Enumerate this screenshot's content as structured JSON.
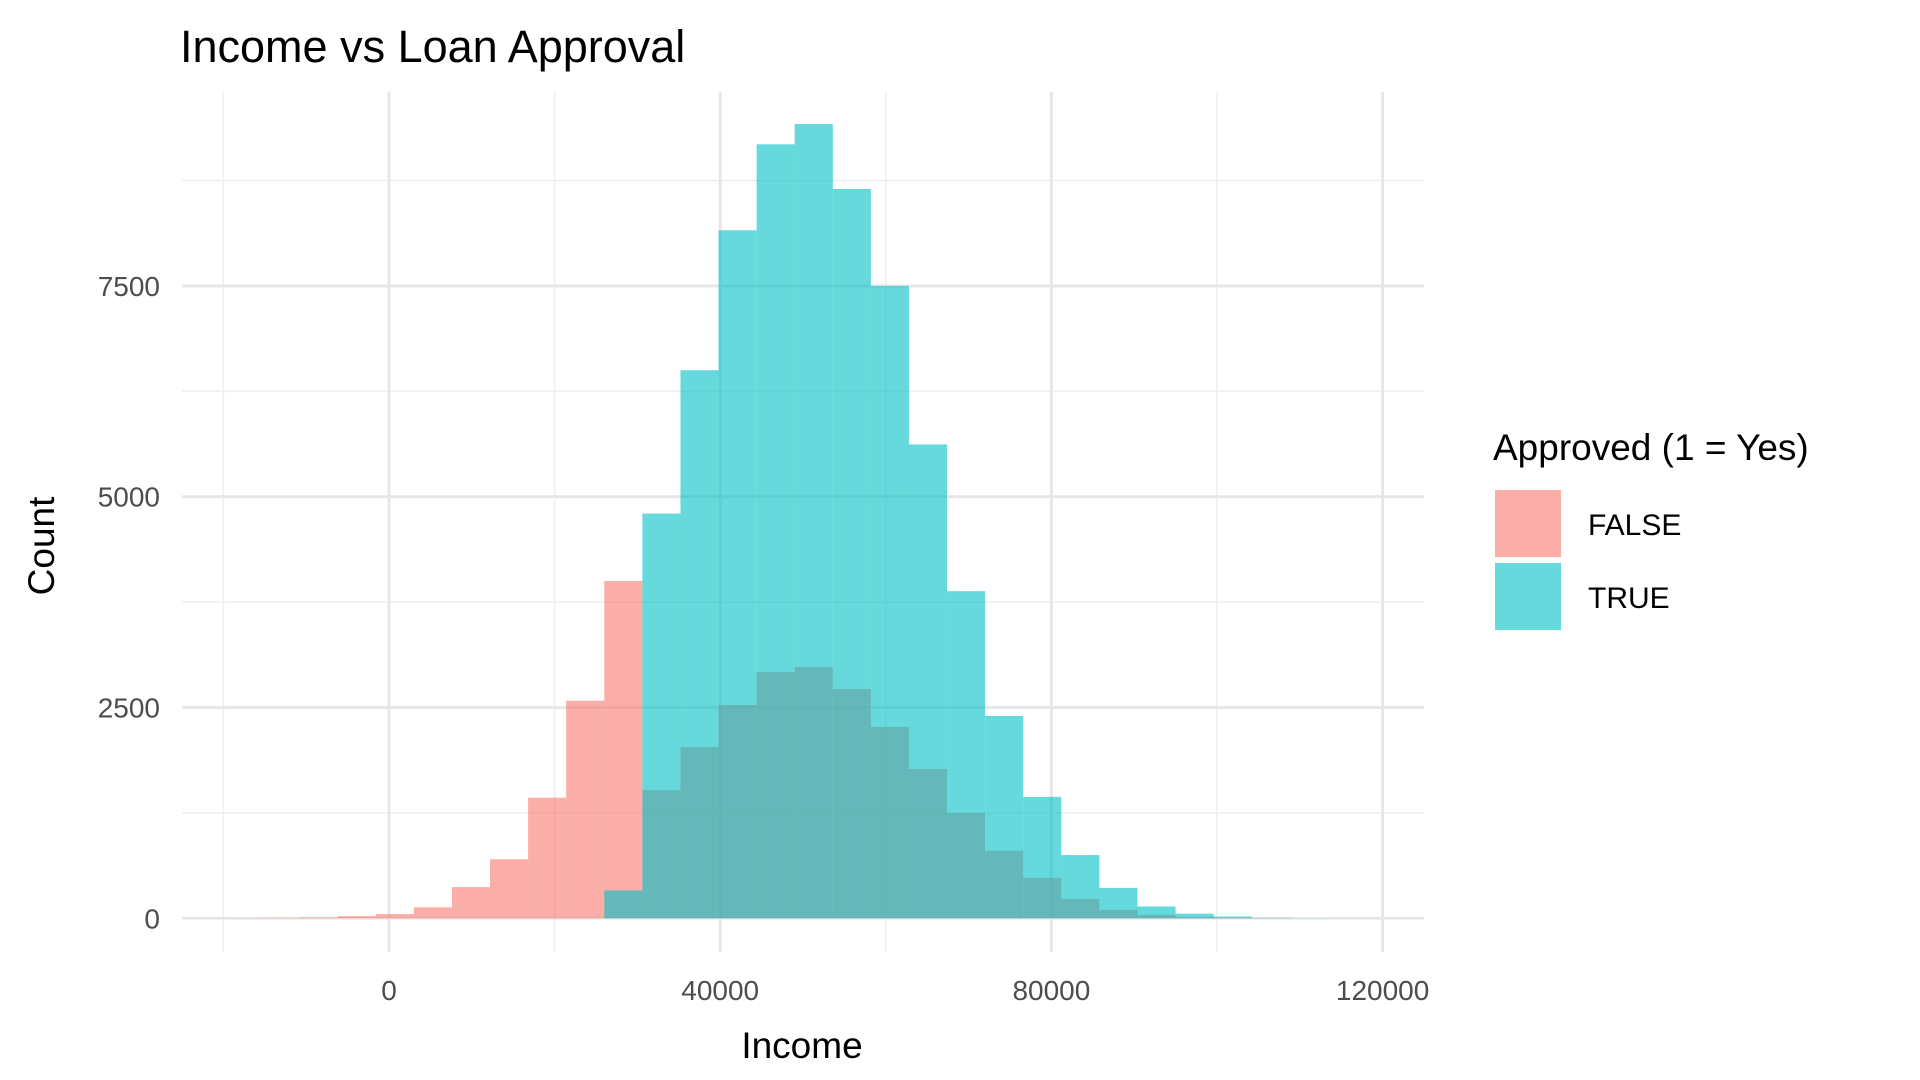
{
  "chart_data": {
    "type": "bar",
    "subtype": "overlapping-histogram",
    "title": "Income vs Loan Approval",
    "xlabel": "Income",
    "ylabel": "Count",
    "xlim": [
      -25000,
      125000
    ],
    "ylim": [
      -400,
      9800
    ],
    "x_ticks": [
      0,
      40000,
      80000,
      120000
    ],
    "x_tick_labels": [
      "0",
      "40000",
      "80000",
      "120000"
    ],
    "y_ticks": [
      0,
      2500,
      5000,
      7500
    ],
    "y_tick_labels": [
      "0",
      "2500",
      "5000",
      "7500"
    ],
    "bin_width": 4600,
    "grid": true,
    "legend": {
      "title": "Approved (1 = Yes)",
      "position": "right"
    },
    "series": [
      {
        "name": "FALSE",
        "color": "#F8766D",
        "bins_start": [
          -20000,
          -15400,
          -10800,
          -6200,
          -1600,
          3000,
          7600,
          12200,
          16800,
          21400,
          26000,
          30600,
          35200,
          39800,
          44400,
          49000,
          53600,
          58200,
          62800,
          67400,
          72000,
          76600,
          81200,
          85800,
          90400,
          95000,
          99600,
          104200,
          108800,
          113400
        ],
        "counts": [
          2,
          5,
          10,
          25,
          50,
          130,
          370,
          700,
          1430,
          2580,
          4000,
          1520,
          2030,
          2530,
          2920,
          2980,
          2720,
          2270,
          1770,
          1250,
          800,
          480,
          230,
          100,
          40,
          15,
          5,
          2,
          0,
          0
        ]
      },
      {
        "name": "TRUE",
        "color": "#00BFC4",
        "bins_start": [
          -20000,
          -15400,
          -10800,
          -6200,
          -1600,
          3000,
          7600,
          12200,
          16800,
          21400,
          26000,
          30600,
          35200,
          39800,
          44400,
          49000,
          53600,
          58200,
          62800,
          67400,
          72000,
          76600,
          81200,
          85800,
          90400,
          95000,
          99600,
          104200,
          108800,
          113400
        ],
        "counts": [
          0,
          0,
          0,
          0,
          0,
          0,
          0,
          0,
          0,
          0,
          330,
          4800,
          6500,
          8160,
          9180,
          9420,
          8650,
          7500,
          5620,
          3880,
          2400,
          1440,
          750,
          360,
          140,
          55,
          20,
          5,
          2,
          0
        ]
      }
    ]
  }
}
